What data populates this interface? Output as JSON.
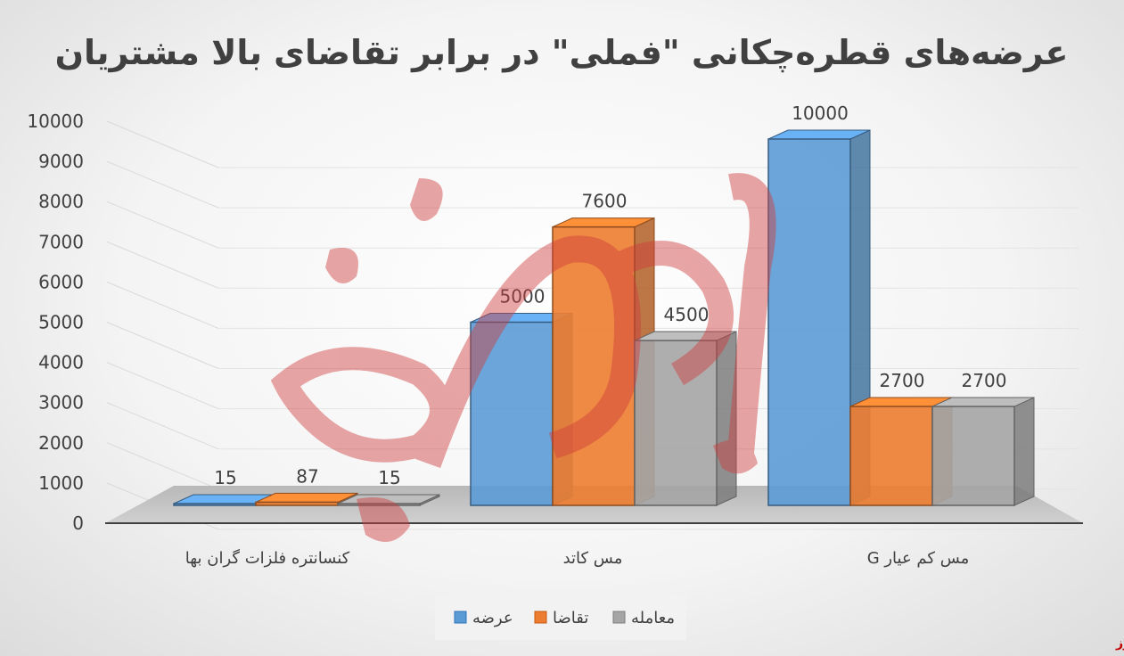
{
  "chart_data": {
    "type": "bar",
    "title": "عرضه‌های قطره‌چکانی \"فملی\" در برابر تقاضای بالا مشتریان",
    "categories": [
      "کنسانتره فلزات گران بها",
      "مس کاتد",
      "مس کم عیار G"
    ],
    "series": [
      {
        "name": "عرضه",
        "values": [
          15,
          5000,
          10000
        ],
        "color": "#5b9bd5"
      },
      {
        "name": "تقاضا",
        "values": [
          87,
          7600,
          2700
        ],
        "color": "#ed7d31"
      },
      {
        "name": "معامله",
        "values": [
          15,
          4500,
          2700
        ],
        "color": "#a5a5a5"
      }
    ],
    "yticks": [
      "0",
      "1000",
      "2000",
      "3000",
      "4000",
      "5000",
      "6000",
      "7000",
      "8000",
      "9000",
      "10000"
    ],
    "ylim": [
      0,
      10000
    ],
    "grid": true,
    "legend": "bottom",
    "three_d": true
  },
  "watermark": "بورس نیوز"
}
